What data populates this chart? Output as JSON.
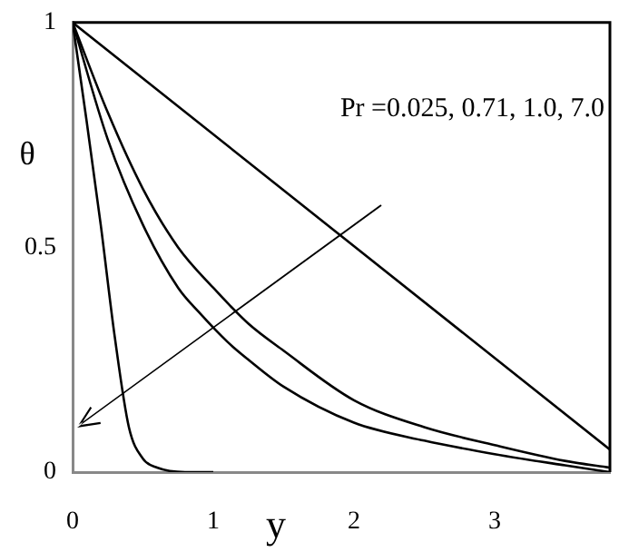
{
  "chart_data": {
    "type": "line",
    "xlabel": "y",
    "ylabel": "θ",
    "xlim": [
      0,
      3.82
    ],
    "ylim": [
      0,
      1
    ],
    "xticks": [
      0,
      1,
      2,
      3
    ],
    "yticks": [
      0,
      0.5,
      1
    ],
    "legend": false,
    "marker": "none",
    "line_style": "solid",
    "annotations": [
      "Pr =0.025, 0.71, 1.0, 7.0"
    ],
    "series": [
      {
        "color": "#000000",
        "x": [
          0,
          3.82
        ],
        "values": [
          1,
          0.05
        ]
      },
      {
        "color": "#000000",
        "x": [
          0,
          0.25,
          0.5,
          0.75,
          1,
          1.25,
          1.5,
          2,
          2.5,
          3,
          3.5,
          3.82
        ],
        "values": [
          1,
          0.8,
          0.63,
          0.5,
          0.41,
          0.33,
          0.27,
          0.16,
          0.1,
          0.06,
          0.025,
          0.01
        ]
      },
      {
        "color": "#000000",
        "x": [
          0,
          0.25,
          0.5,
          0.75,
          0.9,
          1.1,
          1.25,
          1.5,
          2,
          2.5,
          3,
          3.5,
          3.82
        ],
        "values": [
          1,
          0.74,
          0.55,
          0.41,
          0.355,
          0.29,
          0.25,
          0.19,
          0.11,
          0.07,
          0.04,
          0.015,
          0
        ]
      },
      {
        "color": "#000000",
        "x": [
          0,
          0.1,
          0.2,
          0.3,
          0.4,
          0.5,
          0.6,
          0.8,
          1
        ],
        "values": [
          1,
          0.78,
          0.55,
          0.3,
          0.1,
          0.03,
          0.01,
          0,
          0
        ]
      }
    ]
  }
}
